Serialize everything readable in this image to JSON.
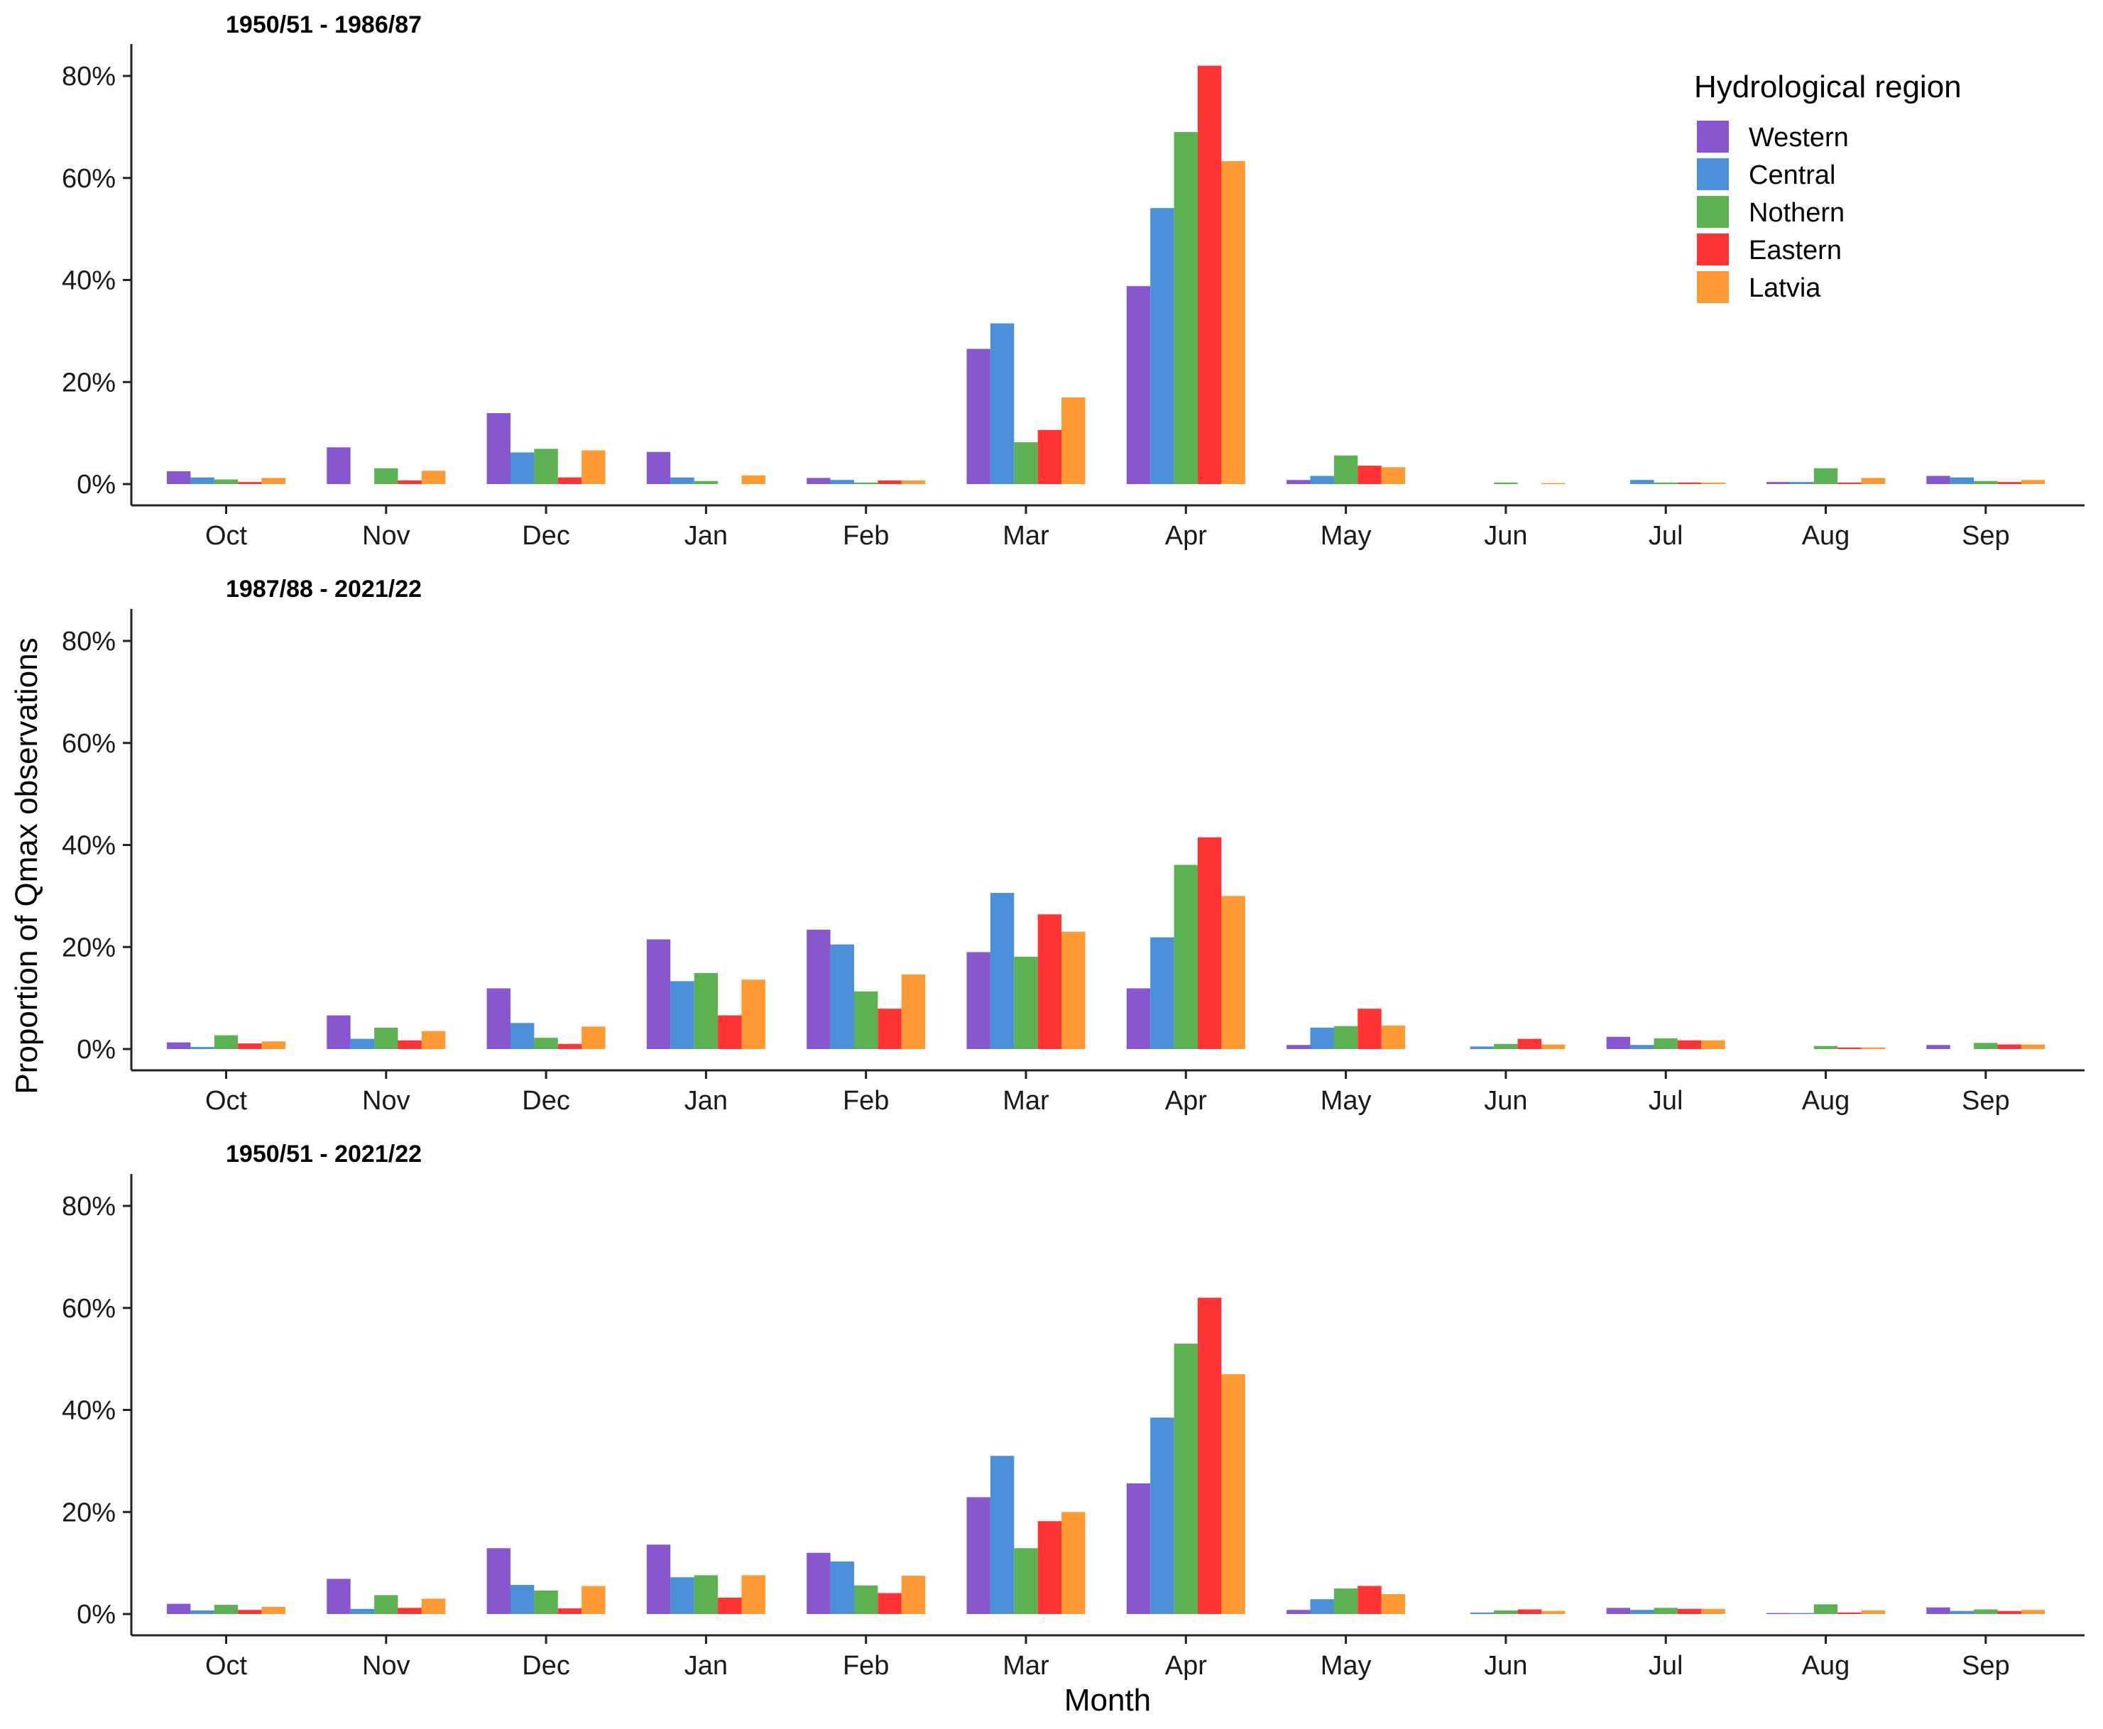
{
  "chart_data": {
    "type": "bar",
    "ylabel": "Proportion of Qmax observations",
    "xlabel": "Month",
    "ylim": [
      0,
      85
    ],
    "yticks": [
      "0%",
      "20%",
      "40%",
      "60%",
      "80%"
    ],
    "ytick_values": [
      0,
      20,
      40,
      60,
      80
    ],
    "categories": [
      "Oct",
      "Nov",
      "Dec",
      "Jan",
      "Feb",
      "Mar",
      "Apr",
      "May",
      "Jun",
      "Jul",
      "Aug",
      "Sep"
    ],
    "legend": {
      "title": "Hydrological region",
      "position": "top-right",
      "entries": [
        {
          "name": "Western",
          "color": "#8856CF"
        },
        {
          "name": "Central",
          "color": "#4A90D9"
        },
        {
          "name": "Nothern",
          "color": "#5CB153"
        },
        {
          "name": "Eastern",
          "color": "#FF3333"
        },
        {
          "name": "Latvia",
          "color": "#FF9933"
        }
      ]
    },
    "panels": [
      {
        "title": "1950/51 - 1986/87",
        "series": [
          {
            "name": "Western",
            "values": [
              2.5,
              7.2,
              13.9,
              6.3,
              1.2,
              26.5,
              38.8,
              0.8,
              0,
              0,
              0.4,
              1.6
            ]
          },
          {
            "name": "Central",
            "values": [
              1.3,
              0,
              6.2,
              1.3,
              0.8,
              31.5,
              54.1,
              1.6,
              0,
              0.8,
              0.4,
              1.3
            ]
          },
          {
            "name": "Nothern",
            "values": [
              0.9,
              3.1,
              6.9,
              0.6,
              0.3,
              8.2,
              69.0,
              5.6,
              0.3,
              0.3,
              3.1,
              0.6
            ]
          },
          {
            "name": "Eastern",
            "values": [
              0.4,
              0.7,
              1.3,
              0,
              0.7,
              10.6,
              82.0,
              3.6,
              0,
              0.3,
              0.3,
              0.4
            ]
          },
          {
            "name": "Latvia",
            "values": [
              1.2,
              2.6,
              6.6,
              1.7,
              0.7,
              17.0,
              63.3,
              3.3,
              0.2,
              0.3,
              1.2,
              0.8
            ]
          }
        ]
      },
      {
        "title": "1987/88 - 2021/22",
        "series": [
          {
            "name": "Western",
            "values": [
              1.3,
              6.6,
              11.9,
              21.5,
              23.4,
              19.0,
              11.9,
              0.8,
              0,
              2.4,
              0,
              0.8
            ]
          },
          {
            "name": "Central",
            "values": [
              0.4,
              2.0,
              5.1,
              13.3,
              20.5,
              30.6,
              21.9,
              4.2,
              0.5,
              0.8,
              0,
              0
            ]
          },
          {
            "name": "Nothern",
            "values": [
              2.7,
              4.2,
              2.2,
              14.9,
              11.3,
              18.1,
              36.1,
              4.5,
              1.0,
              2.1,
              0.6,
              1.2
            ]
          },
          {
            "name": "Eastern",
            "values": [
              1.1,
              1.7,
              1.0,
              6.6,
              7.9,
              26.4,
              41.5,
              7.9,
              2.0,
              1.7,
              0.3,
              0.9
            ]
          },
          {
            "name": "Latvia",
            "values": [
              1.5,
              3.5,
              4.4,
              13.6,
              14.6,
              23.0,
              30.0,
              4.6,
              0.9,
              1.7,
              0.3,
              0.9
            ]
          }
        ]
      },
      {
        "title": "1950/51 - 2021/22",
        "series": [
          {
            "name": "Western",
            "values": [
              2.0,
              6.9,
              12.9,
              13.6,
              12.0,
              22.9,
              25.6,
              0.8,
              0,
              1.2,
              0.2,
              1.3
            ]
          },
          {
            "name": "Central",
            "values": [
              0.7,
              1.0,
              5.7,
              7.2,
              10.3,
              31.0,
              38.5,
              2.9,
              0.3,
              0.8,
              0.2,
              0.6
            ]
          },
          {
            "name": "Nothern",
            "values": [
              1.8,
              3.7,
              4.6,
              7.6,
              5.6,
              12.9,
              53.0,
              5.0,
              0.7,
              1.2,
              1.9,
              0.9
            ]
          },
          {
            "name": "Eastern",
            "values": [
              0.8,
              1.2,
              1.1,
              3.2,
              4.1,
              18.2,
              62.0,
              5.5,
              0.9,
              1.0,
              0.3,
              0.6
            ]
          },
          {
            "name": "Latvia",
            "values": [
              1.4,
              3.0,
              5.5,
              7.6,
              7.5,
              20.0,
              47.0,
              3.9,
              0.6,
              1.0,
              0.7,
              0.8
            ]
          }
        ]
      }
    ]
  }
}
